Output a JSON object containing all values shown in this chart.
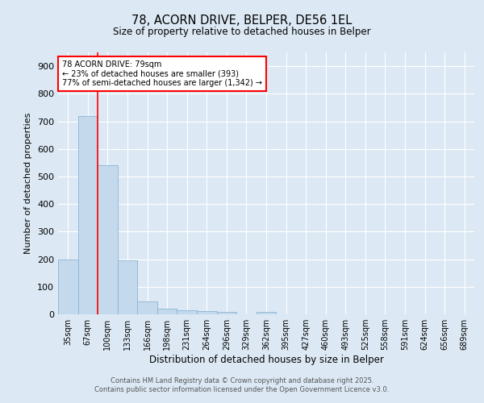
{
  "title1": "78, ACORN DRIVE, BELPER, DE56 1EL",
  "title2": "Size of property relative to detached houses in Belper",
  "xlabel": "Distribution of detached houses by size in Belper",
  "ylabel": "Number of detached properties",
  "categories": [
    "35sqm",
    "67sqm",
    "100sqm",
    "133sqm",
    "166sqm",
    "198sqm",
    "231sqm",
    "264sqm",
    "296sqm",
    "329sqm",
    "362sqm",
    "395sqm",
    "427sqm",
    "460sqm",
    "493sqm",
    "525sqm",
    "558sqm",
    "591sqm",
    "624sqm",
    "656sqm",
    "689sqm"
  ],
  "values": [
    200,
    720,
    540,
    195,
    47,
    20,
    15,
    12,
    8,
    0,
    8,
    0,
    0,
    0,
    0,
    0,
    0,
    0,
    0,
    0,
    0
  ],
  "bar_color": "#c5d9ed",
  "bar_edge_color": "#8ab4d4",
  "red_line_x": 1.48,
  "annotation_title": "78 ACORN DRIVE: 79sqm",
  "annotation_line1": "← 23% of detached houses are smaller (393)",
  "annotation_line2": "77% of semi-detached houses are larger (1,342) →",
  "ylim": [
    0,
    950
  ],
  "yticks": [
    0,
    100,
    200,
    300,
    400,
    500,
    600,
    700,
    800,
    900
  ],
  "footer1": "Contains HM Land Registry data © Crown copyright and database right 2025.",
  "footer2": "Contains public sector information licensed under the Open Government Licence v3.0.",
  "bg_color": "#dce9f5",
  "plot_bg_color": "#dce9f5",
  "grid_color": "#ffffff"
}
